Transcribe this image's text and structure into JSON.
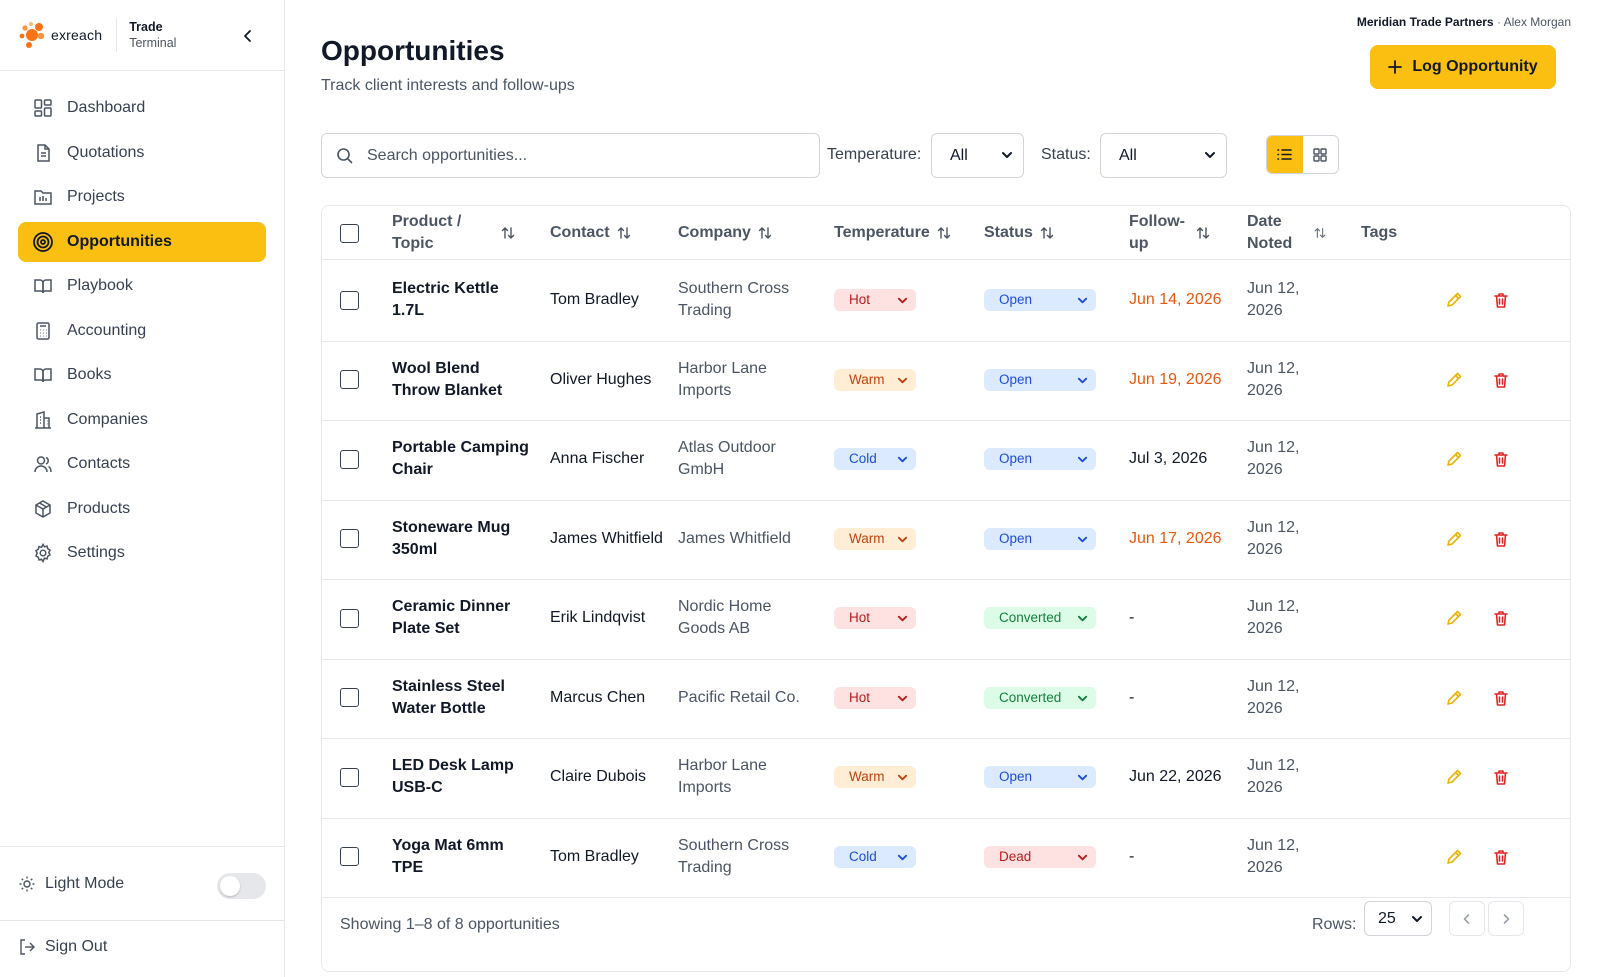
{
  "brand": {
    "logo_text": "exreach",
    "title_line1": "Trade",
    "title_line2": "Terminal"
  },
  "sidebar": {
    "items": [
      {
        "label": "Dashboard",
        "icon": "dashboard-icon"
      },
      {
        "label": "Quotations",
        "icon": "document-icon"
      },
      {
        "label": "Projects",
        "icon": "projects-icon"
      },
      {
        "label": "Opportunities",
        "icon": "target-icon",
        "active": true
      },
      {
        "label": "Playbook",
        "icon": "book-open-icon"
      },
      {
        "label": "Accounting",
        "icon": "calculator-icon"
      },
      {
        "label": "Books",
        "icon": "book-icon"
      },
      {
        "label": "Companies",
        "icon": "building-icon"
      },
      {
        "label": "Contacts",
        "icon": "users-icon"
      },
      {
        "label": "Products",
        "icon": "package-icon"
      },
      {
        "label": "Settings",
        "icon": "gear-icon"
      }
    ],
    "theme_label": "Light Mode",
    "signout_label": "Sign Out"
  },
  "header": {
    "org": "Meridian Trade Partners",
    "separator": "·",
    "user": "Alex Morgan",
    "title": "Opportunities",
    "subtitle": "Track client interests and follow-ups",
    "log_button": "Log Opportunity"
  },
  "filters": {
    "search_placeholder": "Search opportunities...",
    "temperature_label": "Temperature:",
    "temperature_value": "All",
    "status_label": "Status:",
    "status_value": "All"
  },
  "table": {
    "columns": {
      "product": "Product / Topic",
      "contact": "Contact",
      "company": "Company",
      "temperature": "Temperature",
      "status": "Status",
      "followup": "Follow-up",
      "date_noted": "Date Noted",
      "tags": "Tags"
    },
    "rows": [
      {
        "product": "Electric Kettle 1.7L",
        "contact": "Tom Bradley",
        "company": "Southern Cross Trading",
        "temperature": "Hot",
        "status": "Open",
        "followup": "Jun 14, 2026",
        "followup_overdue": true,
        "date_noted": "Jun 12, 2026"
      },
      {
        "product": "Wool Blend Throw Blanket",
        "contact": "Oliver Hughes",
        "company": "Harbor Lane Imports",
        "temperature": "Warm",
        "status": "Open",
        "followup": "Jun 19, 2026",
        "followup_overdue": true,
        "date_noted": "Jun 12, 2026"
      },
      {
        "product": "Portable Camping Chair",
        "contact": "Anna Fischer",
        "company": "Atlas Outdoor GmbH",
        "temperature": "Cold",
        "status": "Open",
        "followup": "Jul 3, 2026",
        "followup_overdue": false,
        "date_noted": "Jun 12, 2026"
      },
      {
        "product": "Stoneware Mug 350ml",
        "contact": "James Whitfield",
        "company": "James Whitfield",
        "temperature": "Warm",
        "status": "Open",
        "followup": "Jun 17, 2026",
        "followup_overdue": true,
        "date_noted": "Jun 12, 2026"
      },
      {
        "product": "Ceramic Dinner Plate Set",
        "contact": "Erik Lindqvist",
        "company": "Nordic Home Goods AB",
        "temperature": "Hot",
        "status": "Converted",
        "followup": "-",
        "followup_overdue": false,
        "date_noted": "Jun 12, 2026"
      },
      {
        "product": "Stainless Steel Water Bottle",
        "contact": "Marcus Chen",
        "company": "Pacific Retail Co.",
        "temperature": "Hot",
        "status": "Converted",
        "followup": "-",
        "followup_overdue": false,
        "date_noted": "Jun 12, 2026"
      },
      {
        "product": "LED Desk Lamp USB-C",
        "contact": "Claire Dubois",
        "company": "Harbor Lane Imports",
        "temperature": "Warm",
        "status": "Open",
        "followup": "Jun 22, 2026",
        "followup_overdue": false,
        "date_noted": "Jun 12, 2026"
      },
      {
        "product": "Yoga Mat 6mm TPE",
        "contact": "Tom Bradley",
        "company": "Southern Cross Trading",
        "temperature": "Cold",
        "status": "Dead",
        "followup": "-",
        "followup_overdue": false,
        "date_noted": "Jun 12, 2026"
      }
    ],
    "showing": "Showing 1–8 of 8 opportunities",
    "rows_label": "Rows:",
    "rows_value": "25"
  },
  "colors": {
    "accent": "#fbbf12",
    "overdue": "#ea580c",
    "edit_icon": "#eab308",
    "delete_icon": "#dc2626"
  }
}
